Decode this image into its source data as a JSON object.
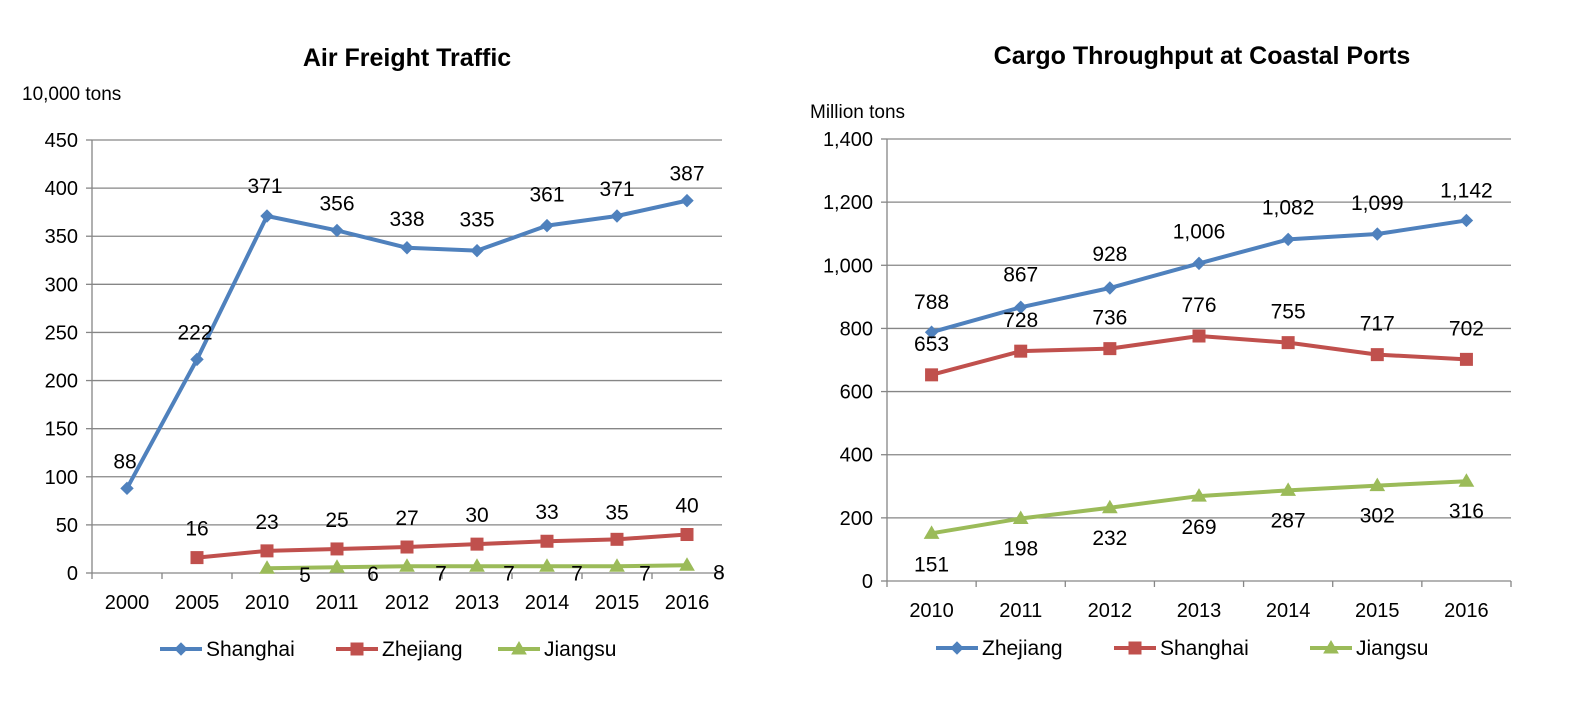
{
  "chart_data": [
    {
      "type": "line",
      "title": "Air Freight Traffic",
      "ylabel": "10,000 tons",
      "xlabel": "",
      "categories": [
        "2000",
        "2005",
        "2010",
        "2011",
        "2012",
        "2013",
        "2014",
        "2015",
        "2016"
      ],
      "ylim": [
        0,
        450
      ],
      "yticks": [
        0,
        50,
        100,
        150,
        200,
        250,
        300,
        350,
        400,
        450
      ],
      "ytick_labels": [
        "0",
        "50",
        "100",
        "150",
        "200",
        "250",
        "300",
        "350",
        "400",
        "450"
      ],
      "grid": true,
      "legend_position": "bottom",
      "series": [
        {
          "name": "Shanghai",
          "color": "#4F81BD",
          "marker": "diamond",
          "values": [
            88,
            222,
            371,
            356,
            338,
            335,
            361,
            371,
            387
          ],
          "labels": [
            "88",
            "222",
            "371",
            "356",
            "338",
            "335",
            "361",
            "371",
            "387"
          ]
        },
        {
          "name": "Zhejiang",
          "color": "#C0504D",
          "marker": "square",
          "values": [
            null,
            16,
            23,
            25,
            27,
            30,
            33,
            35,
            40
          ],
          "labels": [
            null,
            "16",
            "23",
            "25",
            "27",
            "30",
            "33",
            "35",
            "40"
          ]
        },
        {
          "name": "Jiangsu",
          "color": "#9BBB59",
          "marker": "triangle",
          "values": [
            null,
            null,
            5,
            6,
            7,
            7,
            7,
            7,
            8
          ],
          "labels": [
            null,
            null,
            "5",
            "6",
            "7",
            "7",
            "7",
            "7",
            "8"
          ]
        }
      ]
    },
    {
      "type": "line",
      "title": "Cargo Throughput at Coastal Ports",
      "ylabel": "Million tons",
      "xlabel": "",
      "categories": [
        "2010",
        "2011",
        "2012",
        "2013",
        "2014",
        "2015",
        "2016"
      ],
      "ylim": [
        0,
        1400
      ],
      "yticks": [
        0,
        200,
        400,
        600,
        800,
        1000,
        1200,
        1400
      ],
      "ytick_labels": [
        "0",
        "200",
        "400",
        "600",
        "800",
        "1,000",
        "1,200",
        "1,400"
      ],
      "grid": true,
      "legend_position": "bottom",
      "series": [
        {
          "name": "Zhejiang",
          "color": "#4F81BD",
          "marker": "diamond",
          "values": [
            788,
            867,
            928,
            1006,
            1082,
            1099,
            1142
          ],
          "labels": [
            "788",
            "867",
            "928",
            "1,006",
            "1,082",
            "1,099",
            "1,142"
          ]
        },
        {
          "name": "Shanghai",
          "color": "#C0504D",
          "marker": "square",
          "values": [
            653,
            728,
            736,
            776,
            755,
            717,
            702
          ],
          "labels": [
            "653",
            "728",
            "736",
            "776",
            "755",
            "717",
            "702"
          ]
        },
        {
          "name": "Jiangsu",
          "color": "#9BBB59",
          "marker": "triangle",
          "values": [
            151,
            198,
            232,
            269,
            287,
            302,
            316
          ],
          "labels": [
            "151",
            "198",
            "232",
            "269",
            "287",
            "302",
            "316"
          ]
        }
      ]
    }
  ]
}
